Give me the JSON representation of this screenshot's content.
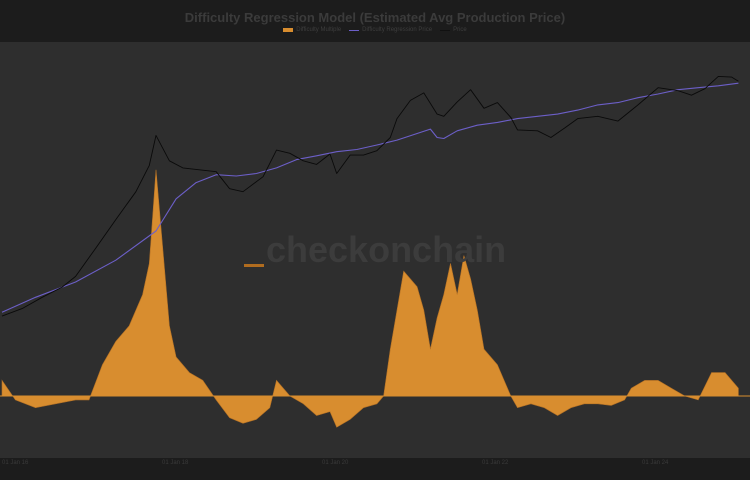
{
  "chart_data": {
    "type": "line",
    "title": "Difficulty Regression Model (Estimated Avg Production Price)",
    "legend_placement": "top-center",
    "y_scale": "log",
    "grid": false,
    "series": [
      {
        "name": "Difficulty Multiple",
        "kind": "area",
        "color": "#d88d2f",
        "axis": "right",
        "points": [
          [
            "2016-01",
            1.2
          ],
          [
            "2016-03",
            0.95
          ],
          [
            "2016-06",
            0.85
          ],
          [
            "2016-09",
            0.9
          ],
          [
            "2016-12",
            0.95
          ],
          [
            "2017-02",
            0.95
          ],
          [
            "2017-04",
            1.4
          ],
          [
            "2017-06",
            1.7
          ],
          [
            "2017-08",
            1.9
          ],
          [
            "2017-10",
            2.3
          ],
          [
            "2017-11",
            2.7
          ],
          [
            "2017-12",
            3.9
          ],
          [
            "2018-01",
            2.9
          ],
          [
            "2018-02",
            1.9
          ],
          [
            "2018-03",
            1.5
          ],
          [
            "2018-05",
            1.3
          ],
          [
            "2018-07",
            1.2
          ],
          [
            "2018-09",
            0.95
          ],
          [
            "2018-11",
            0.72
          ],
          [
            "2019-01",
            0.65
          ],
          [
            "2019-03",
            0.7
          ],
          [
            "2019-05",
            0.85
          ],
          [
            "2019-06",
            1.2
          ],
          [
            "2019-08",
            1.0
          ],
          [
            "2019-10",
            0.9
          ],
          [
            "2019-12",
            0.75
          ],
          [
            "2020-02",
            0.8
          ],
          [
            "2020-03",
            0.6
          ],
          [
            "2020-05",
            0.7
          ],
          [
            "2020-07",
            0.85
          ],
          [
            "2020-09",
            0.9
          ],
          [
            "2020-10",
            1.0
          ],
          [
            "2020-11",
            1.6
          ],
          [
            "2020-12",
            2.1
          ],
          [
            "2021-01",
            2.6
          ],
          [
            "2021-02",
            2.5
          ],
          [
            "2021-03",
            2.4
          ],
          [
            "2021-04",
            2.1
          ],
          [
            "2021-05",
            1.6
          ],
          [
            "2021-06",
            2.0
          ],
          [
            "2021-07",
            2.3
          ],
          [
            "2021-08",
            2.7
          ],
          [
            "2021-09",
            2.3
          ],
          [
            "2021-10",
            2.8
          ],
          [
            "2021-11",
            2.5
          ],
          [
            "2021-12",
            2.1
          ],
          [
            "2022-01",
            1.6
          ],
          [
            "2022-03",
            1.4
          ],
          [
            "2022-05",
            1.0
          ],
          [
            "2022-06",
            0.85
          ],
          [
            "2022-08",
            0.9
          ],
          [
            "2022-10",
            0.85
          ],
          [
            "2022-12",
            0.75
          ],
          [
            "2023-02",
            0.85
          ],
          [
            "2023-04",
            0.9
          ],
          [
            "2023-06",
            0.9
          ],
          [
            "2023-08",
            0.88
          ],
          [
            "2023-10",
            0.95
          ],
          [
            "2023-11",
            1.1
          ],
          [
            "2024-01",
            1.2
          ],
          [
            "2024-03",
            1.2
          ],
          [
            "2024-05",
            1.1
          ],
          [
            "2024-07",
            1.0
          ],
          [
            "2024-09",
            0.95
          ],
          [
            "2024-11",
            1.3
          ],
          [
            "2025-01",
            1.3
          ],
          [
            "2025-03",
            1.1
          ]
        ]
      },
      {
        "name": "Difficulty Regression Price",
        "kind": "line",
        "color": "#6c5fc8",
        "axis": "left",
        "points": [
          [
            "2016-01",
            90
          ],
          [
            "2016-06",
            140
          ],
          [
            "2016-12",
            220
          ],
          [
            "2017-06",
            420
          ],
          [
            "2017-12",
            1000
          ],
          [
            "2018-03",
            2600
          ],
          [
            "2018-06",
            4200
          ],
          [
            "2018-09",
            5300
          ],
          [
            "2018-12",
            5100
          ],
          [
            "2019-03",
            5500
          ],
          [
            "2019-06",
            6500
          ],
          [
            "2019-09",
            8300
          ],
          [
            "2019-12",
            9300
          ],
          [
            "2020-03",
            10500
          ],
          [
            "2020-06",
            11200
          ],
          [
            "2020-09",
            12800
          ],
          [
            "2020-12",
            14800
          ],
          [
            "2021-03",
            18000
          ],
          [
            "2021-05",
            20500
          ],
          [
            "2021-06",
            16000
          ],
          [
            "2021-07",
            15500
          ],
          [
            "2021-09",
            19500
          ],
          [
            "2021-12",
            23000
          ],
          [
            "2022-03",
            25000
          ],
          [
            "2022-06",
            28000
          ],
          [
            "2022-09",
            30000
          ],
          [
            "2022-12",
            32000
          ],
          [
            "2023-03",
            36000
          ],
          [
            "2023-06",
            42000
          ],
          [
            "2023-09",
            45000
          ],
          [
            "2023-12",
            52000
          ],
          [
            "2024-03",
            58000
          ],
          [
            "2024-06",
            66000
          ],
          [
            "2024-09",
            70000
          ],
          [
            "2024-12",
            74000
          ],
          [
            "2025-03",
            80000
          ]
        ]
      },
      {
        "name": "Price",
        "kind": "line",
        "color": "#0a0a0a",
        "axis": "left",
        "points": [
          [
            "2016-01",
            80
          ],
          [
            "2016-04",
            100
          ],
          [
            "2016-07",
            140
          ],
          [
            "2016-10",
            190
          ],
          [
            "2016-12",
            260
          ],
          [
            "2017-03",
            600
          ],
          [
            "2017-06",
            1400
          ],
          [
            "2017-09",
            3200
          ],
          [
            "2017-11",
            7000
          ],
          [
            "2017-12",
            17000
          ],
          [
            "2018-02",
            8000
          ],
          [
            "2018-04",
            6500
          ],
          [
            "2018-06",
            6200
          ],
          [
            "2018-09",
            5800
          ],
          [
            "2018-11",
            3500
          ],
          [
            "2019-01",
            3200
          ],
          [
            "2019-04",
            5000
          ],
          [
            "2019-06",
            11000
          ],
          [
            "2019-08",
            10000
          ],
          [
            "2019-10",
            8000
          ],
          [
            "2019-12",
            7200
          ],
          [
            "2020-02",
            9800
          ],
          [
            "2020-03",
            5500
          ],
          [
            "2020-05",
            9500
          ],
          [
            "2020-07",
            9500
          ],
          [
            "2020-09",
            10800
          ],
          [
            "2020-11",
            16000
          ],
          [
            "2020-12",
            28000
          ],
          [
            "2021-02",
            48000
          ],
          [
            "2021-04",
            60000
          ],
          [
            "2021-06",
            32000
          ],
          [
            "2021-07",
            30000
          ],
          [
            "2021-09",
            46000
          ],
          [
            "2021-11",
            66000
          ],
          [
            "2022-01",
            38000
          ],
          [
            "2022-03",
            45000
          ],
          [
            "2022-05",
            29000
          ],
          [
            "2022-06",
            20000
          ],
          [
            "2022-09",
            19500
          ],
          [
            "2022-11",
            16000
          ],
          [
            "2023-01",
            21000
          ],
          [
            "2023-03",
            28000
          ],
          [
            "2023-06",
            30000
          ],
          [
            "2023-09",
            26000
          ],
          [
            "2023-12",
            42000
          ],
          [
            "2024-03",
            70000
          ],
          [
            "2024-06",
            64000
          ],
          [
            "2024-08",
            56000
          ],
          [
            "2024-10",
            68000
          ],
          [
            "2024-12",
            98000
          ],
          [
            "2025-02",
            96000
          ],
          [
            "2025-03",
            85000
          ]
        ]
      }
    ],
    "x_ticks": [
      "01 Jan 16",
      "01 Jan 18",
      "01 Jan 20",
      "01 Jan 22",
      "01 Jan 24"
    ]
  },
  "watermark": {
    "text": "checkonchain"
  }
}
